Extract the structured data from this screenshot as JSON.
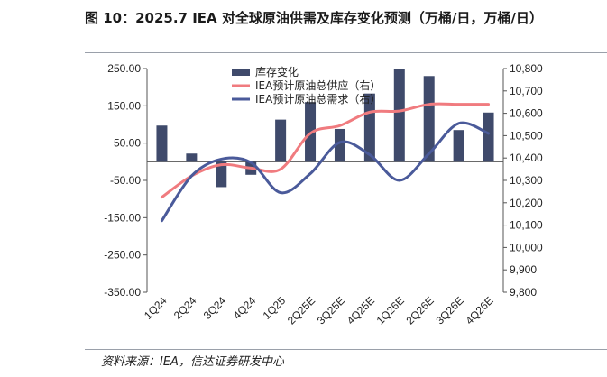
{
  "title": "图 10：2025.7 IEA 对全球原油供需及库存变化预测（万桶/日，万桶/日）",
  "source": "资料来源：IEA，信达证券研发中心",
  "colors": {
    "bar": "#3f4a6b",
    "supply": "#f07b7f",
    "demand": "#4a5a9a",
    "axis": "#555555"
  },
  "chart_data": {
    "type": "bar+line",
    "categories": [
      "1Q24",
      "2Q24",
      "3Q24",
      "4Q24",
      "1Q25",
      "2Q25E",
      "3Q25E",
      "4Q25E",
      "1Q26E",
      "2Q26E",
      "3Q26E",
      "4Q26E"
    ],
    "left_axis": {
      "min": -350,
      "max": 250,
      "ticks": [
        "250.00",
        "150.00",
        "50.00",
        "-50.00",
        "-150.00",
        "-250.00",
        "-350.00"
      ]
    },
    "right_axis": {
      "min": 9800,
      "max": 10800,
      "ticks": [
        "10,800",
        "10,700",
        "10,600",
        "10,500",
        "10,400",
        "10,300",
        "10,200",
        "10,100",
        "10,000",
        "9,900",
        "9,800"
      ]
    },
    "series": [
      {
        "name": "库存变化",
        "type": "bar",
        "axis": "left",
        "values": [
          97,
          22,
          -68,
          -35,
          113,
          160,
          88,
          183,
          248,
          230,
          85,
          132
        ]
      },
      {
        "name": "IEA预计原油总供应（右）",
        "type": "line",
        "axis": "right",
        "values": [
          10225,
          10320,
          10370,
          10355,
          10350,
          10510,
          10545,
          10605,
          10610,
          10640,
          10640,
          10640
        ]
      },
      {
        "name": "IEA预计原油总需求（右）",
        "type": "line",
        "axis": "right",
        "values": [
          10120,
          10320,
          10395,
          10380,
          10245,
          10330,
          10470,
          10415,
          10300,
          10420,
          10555,
          10510
        ]
      }
    ],
    "legend_position": "top"
  }
}
